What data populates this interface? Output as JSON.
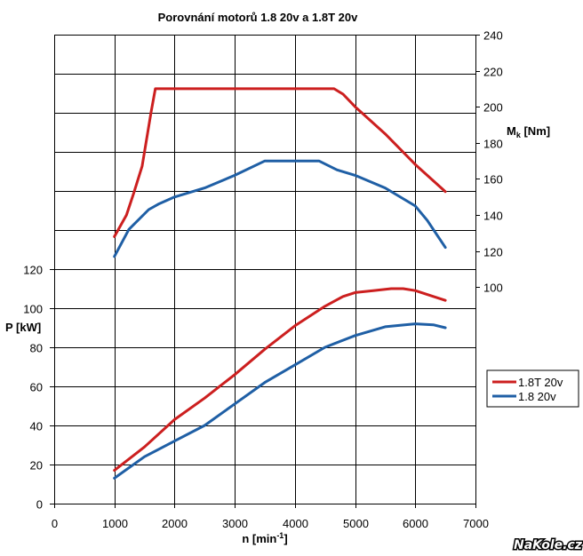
{
  "chart_data": {
    "type": "line",
    "title": "Porovnání motorů 1.8 20v a 1.8T 20v",
    "xlabel": "n [min",
    "xlabel_sup": "-1",
    "xlabel_end": "]",
    "ylabel_left": "P [kW]",
    "ylabel_right_main": "M",
    "ylabel_right_sub": "k",
    "ylabel_right_end": " [Nm]",
    "xlim": [
      0,
      7000
    ],
    "x_ticks": [
      0,
      1000,
      2000,
      3000,
      4000,
      5000,
      6000,
      7000
    ],
    "y_left_ticks": [
      0,
      20,
      40,
      60,
      80,
      100,
      120
    ],
    "y_left_range": [
      0,
      240
    ],
    "y_right_ticks": [
      100,
      120,
      140,
      160,
      180,
      200,
      220,
      240
    ],
    "y_right_range": [
      -20,
      240
    ],
    "grid": true,
    "legend_position": "right",
    "series": [
      {
        "name": "1.8T 20v",
        "color": "#cc1f1f",
        "kind": "torque",
        "axis": "right",
        "x": [
          1000,
          1200,
          1320,
          1460,
          1610,
          1680,
          1750,
          2000,
          3000,
          4000,
          4650,
          4800,
          5000,
          5500,
          6000,
          6500
        ],
        "y": [
          128,
          140,
          152,
          167,
          197,
          210,
          210,
          210,
          210,
          210,
          210,
          207,
          200,
          185,
          168,
          153
        ]
      },
      {
        "name": "1.8 20v",
        "color": "#1f5fa5",
        "kind": "torque",
        "axis": "right",
        "x": [
          1000,
          1240,
          1570,
          1730,
          2000,
          2500,
          3000,
          3500,
          4000,
          4400,
          4700,
          5000,
          5500,
          6000,
          6200,
          6500
        ],
        "y": [
          117,
          132,
          143,
          146,
          150,
          155,
          162,
          170,
          170,
          170,
          165,
          162,
          155,
          145,
          137,
          122
        ]
      },
      {
        "name": "1.8T 20v",
        "color": "#cc1f1f",
        "kind": "power",
        "axis": "left",
        "x": [
          1000,
          1500,
          2000,
          2500,
          3000,
          3500,
          4000,
          4500,
          4800,
          5000,
          5300,
          5600,
          5800,
          6000,
          6300,
          6500
        ],
        "y": [
          17,
          29,
          43,
          54,
          66,
          79,
          91,
          101,
          106,
          108,
          109,
          110,
          110,
          109,
          106,
          104
        ]
      },
      {
        "name": "1.8 20v",
        "color": "#1f5fa5",
        "kind": "power",
        "axis": "left",
        "x": [
          1000,
          1500,
          2000,
          2500,
          3000,
          3500,
          4000,
          4500,
          5000,
          5500,
          6000,
          6300,
          6500
        ],
        "y": [
          13,
          24,
          32,
          40,
          51,
          62,
          71,
          80,
          86,
          90.5,
          92,
          91.5,
          90
        ]
      }
    ],
    "legend": [
      {
        "label": "1.8T 20v",
        "color": "#cc1f1f"
      },
      {
        "label": "1.8 20v",
        "color": "#1f5fa5"
      }
    ]
  },
  "watermark": "NaKole.cz"
}
